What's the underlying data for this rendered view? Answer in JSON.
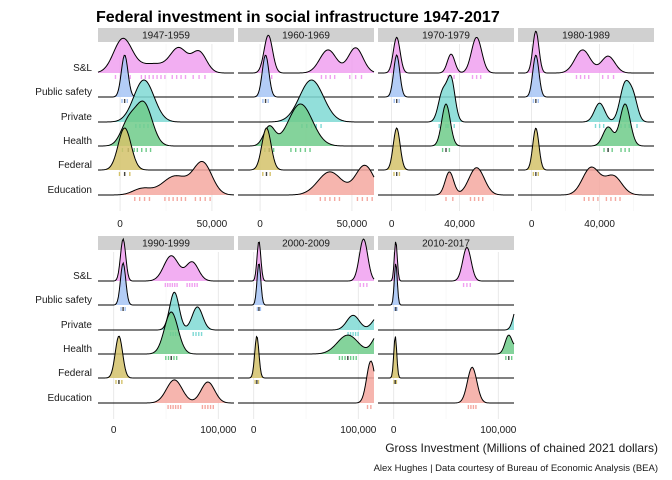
{
  "chart_data": {
    "type": "ridgeline",
    "title": "Federal investment in social infrastructure 1947-2017",
    "xlabel": "Gross Investment (Millions of chained 2021 dollars)",
    "caption": "Alex Hughes | Data courtesy of Bureau of Economic Analysis (BEA)",
    "categories": [
      "S&L",
      "Public safety",
      "Private",
      "Health",
      "Federal",
      "Education"
    ],
    "colors": {
      "S&L": "#F0A0F0",
      "Public safety": "#A6C4F5",
      "Private": "#7FD9D4",
      "Health": "#6FCB8A",
      "Federal": "#D4C26A",
      "Education": "#F4A8A0"
    },
    "panels": [
      {
        "name": "1947-1959",
        "xlim": [
          -12000,
          62000
        ],
        "xticks": [
          0,
          50000
        ],
        "xtick_labels": [
          "0",
          "50,000"
        ],
        "series": {
          "S&L": [
            [
              1500,
              0.8,
              5000
            ],
            [
              18000,
              0.22,
              8000
            ],
            [
              32000,
              0.55,
              4500
            ],
            [
              43000,
              0.5,
              4000
            ]
          ],
          "Public safety": [
            [
              2500,
              1.0,
              1800
            ]
          ],
          "Private": [
            [
              13000,
              1.0,
              5500
            ]
          ],
          "Health": [
            [
              4500,
              0.55,
              4000
            ],
            [
              13000,
              1.0,
              4500
            ]
          ],
          "Federal": [
            [
              2500,
              1.0,
              3500
            ]
          ],
          "Education": [
            [
              12000,
              0.15,
              5000
            ],
            [
              30000,
              0.45,
              7000
            ],
            [
              45000,
              0.75,
              5000
            ]
          ]
        }
      },
      {
        "name": "1960-1969",
        "xlim": [
          -12000,
          62000
        ],
        "xticks": [
          0,
          50000
        ],
        "xtick_labels": [
          "0",
          "50,000"
        ],
        "series": {
          "S&L": [
            [
              4500,
              0.9,
              2300
            ],
            [
              37000,
              0.55,
              4500
            ],
            [
              52000,
              0.6,
              4000
            ]
          ],
          "Public safety": [
            [
              3000,
              1.0,
              1800
            ]
          ],
          "Private": [
            [
              28000,
              1.0,
              6500
            ]
          ],
          "Health": [
            [
              5000,
              0.45,
              3000
            ],
            [
              22000,
              1.0,
              6500
            ]
          ],
          "Federal": [
            [
              3500,
              1.0,
              2500
            ]
          ],
          "Education": [
            [
              38000,
              0.55,
              6500
            ],
            [
              57000,
              0.7,
              5000
            ]
          ]
        }
      },
      {
        "name": "1970-1979",
        "xlim": [
          -8000,
          72000
        ],
        "xticks": [
          0,
          40000
        ],
        "xtick_labels": [
          "0",
          "40,000"
        ],
        "series": {
          "S&L": [
            [
              3000,
              0.85,
              2000
            ],
            [
              35000,
              0.45,
              2200
            ],
            [
              50000,
              0.85,
              3000
            ]
          ],
          "Public safety": [
            [
              3000,
              1.0,
              1800
            ]
          ],
          "Private": [
            [
              30000,
              0.7,
              2500
            ],
            [
              35000,
              1.0,
              2300
            ]
          ],
          "Health": [
            [
              32000,
              1.0,
              2500
            ]
          ],
          "Federal": [
            [
              3000,
              1.0,
              2000
            ]
          ],
          "Education": [
            [
              34000,
              0.55,
              2500
            ],
            [
              50000,
              0.65,
              4500
            ]
          ]
        }
      },
      {
        "name": "1980-1989",
        "xlim": [
          -8000,
          72000
        ],
        "xticks": [
          0,
          40000
        ],
        "xtick_labels": [
          "0",
          "40,000"
        ],
        "series": {
          "S&L": [
            [
              2500,
              1.0,
              1800
            ],
            [
              30000,
              0.55,
              4500
            ],
            [
              45000,
              0.4,
              4000
            ]
          ],
          "Public safety": [
            [
              2500,
              1.0,
              1800
            ]
          ],
          "Private": [
            [
              40000,
              0.45,
              3000
            ],
            [
              55000,
              0.9,
              3000
            ],
            [
              60000,
              0.5,
              2500
            ]
          ],
          "Health": [
            [
              45000,
              0.45,
              3000
            ],
            [
              55000,
              1.0,
              3000
            ]
          ],
          "Federal": [
            [
              2500,
              1.0,
              1800
            ]
          ],
          "Education": [
            [
              35000,
              0.65,
              5000
            ],
            [
              48000,
              0.45,
              5000
            ]
          ]
        }
      },
      {
        "name": "1990-1999",
        "xlim": [
          -15000,
          115000
        ],
        "xticks": [
          0,
          100000
        ],
        "xtick_labels": [
          "0",
          "100,000"
        ],
        "series": {
          "S&L": [
            [
              9000,
              1.0,
              2500
            ],
            [
              55000,
              0.6,
              7000
            ],
            [
              75000,
              0.45,
              6000
            ]
          ],
          "Public safety": [
            [
              9000,
              1.0,
              2500
            ]
          ],
          "Private": [
            [
              58000,
              0.9,
              4500
            ],
            [
              80000,
              0.55,
              5000
            ]
          ],
          "Health": [
            [
              55000,
              1.0,
              6500
            ]
          ],
          "Federal": [
            [
              5000,
              1.0,
              3500
            ]
          ],
          "Education": [
            [
              58000,
              0.55,
              7500
            ],
            [
              90000,
              0.5,
              6500
            ]
          ]
        }
      },
      {
        "name": "2000-2009",
        "xlim": [
          -15000,
          115000
        ],
        "xticks": [
          0,
          100000
        ],
        "xtick_labels": [
          "0",
          "100,000"
        ],
        "series": {
          "S&L": [
            [
              5000,
              0.95,
              1800
            ],
            [
              105000,
              1.0,
              4000
            ]
          ],
          "Public safety": [
            [
              5000,
              1.0,
              1800
            ]
          ],
          "Private": [
            [
              95000,
              0.35,
              6000
            ],
            [
              120000,
              0.35,
              6000
            ]
          ],
          "Health": [
            [
              90000,
              0.45,
              10000
            ],
            [
              120000,
              0.5,
              6000
            ]
          ],
          "Federal": [
            [
              3000,
              1.0,
              2000
            ]
          ],
          "Education": [
            [
              112000,
              1.0,
              4000
            ]
          ]
        }
      },
      {
        "name": "2010-2017",
        "xlim": [
          -15000,
          115000
        ],
        "xticks": [
          0,
          100000
        ],
        "xtick_labels": [
          "0",
          "100,000"
        ],
        "series": {
          "S&L": [
            [
              2000,
              0.95,
              1400
            ],
            [
              70000,
              0.8,
              4000
            ]
          ],
          "Public safety": [
            [
              2000,
              1.0,
              1400
            ]
          ],
          "Private": [
            [
              118000,
              0.55,
              3500
            ],
            [
              128000,
              0.3,
              3000
            ],
            [
              142000,
              0.35,
              3000
            ]
          ],
          "Health": [
            [
              110000,
              0.45,
              3500
            ],
            [
              122000,
              0.55,
              3500
            ],
            [
              135000,
              0.25,
              3000
            ]
          ],
          "Federal": [
            [
              1500,
              1.0,
              1400
            ]
          ],
          "Education": [
            [
              75000,
              0.85,
              4500
            ]
          ]
        }
      }
    ]
  }
}
